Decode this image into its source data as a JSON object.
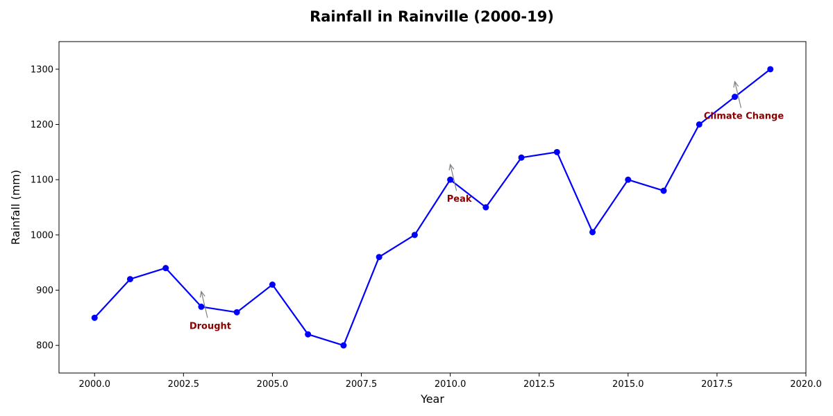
{
  "chart_data": {
    "type": "line",
    "title": "Rainfall in Rainville (2000-19)",
    "xlabel": "Year",
    "ylabel": "Rainfall (mm)",
    "xlim": [
      1999,
      2020
    ],
    "ylim": [
      750,
      1350
    ],
    "x_ticks": [
      2000,
      2002.5,
      2005,
      2007.5,
      2010,
      2012.5,
      2015,
      2017.5,
      2020
    ],
    "x_tick_labels": [
      "2000.0",
      "2002.5",
      "2005.0",
      "2007.5",
      "2010.0",
      "2012.5",
      "2015.0",
      "2017.5",
      "2020.0"
    ],
    "y_ticks": [
      800,
      900,
      1000,
      1100,
      1200,
      1300
    ],
    "y_tick_labels": [
      "800",
      "900",
      "1000",
      "1100",
      "1200",
      "1300"
    ],
    "grid": false,
    "series": [
      {
        "color": "#0000ff",
        "marker": "circle",
        "x": [
          2000,
          2001,
          2002,
          2003,
          2004,
          2005,
          2006,
          2007,
          2008,
          2009,
          2010,
          2011,
          2012,
          2013,
          2014,
          2015,
          2016,
          2017,
          2018,
          2019
        ],
        "values": [
          850,
          920,
          940,
          870,
          860,
          910,
          820,
          800,
          960,
          1000,
          1100,
          1050,
          1140,
          1150,
          1005,
          1100,
          1080,
          1200,
          1250,
          1300
        ]
      }
    ],
    "annotations": [
      {
        "text": "Drought",
        "x": 2003,
        "y": 870
      },
      {
        "text": "Peak",
        "x": 2010,
        "y": 1100
      },
      {
        "text": "Climate Change",
        "x": 2018,
        "y": 1250
      }
    ],
    "annotation_color": "#8b0000",
    "arrow_color": "#808080"
  }
}
